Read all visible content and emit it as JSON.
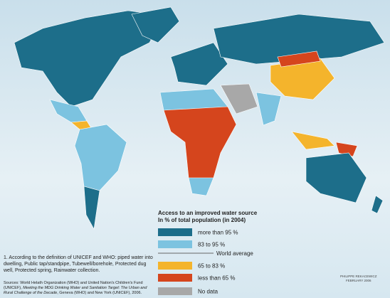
{
  "legend": {
    "title": "Access to an improved water source",
    "subtitle": "In % of total population (in 2004)",
    "items": [
      {
        "label": "more than 95 %",
        "color": "#1d6e8a"
      },
      {
        "label": "83 to 95 %",
        "color": "#7cc3e0"
      },
      {
        "label": "65 to 83 %",
        "color": "#f4b42c"
      },
      {
        "label": "less than 65 %",
        "color": "#d5451d"
      },
      {
        "label": "No data",
        "color": "#a8a8a8"
      }
    ],
    "world_average": "World average"
  },
  "footnote": "1. According to the definition of UNICEF and WHO: piped water into dwelling, Public tap/standpipe, Tubewell/borehole, Protected dug well, Protected spring, Rainwater collection.",
  "sources": {
    "lead": "Sources: World Helath Organization (WHO) and United Nation's Children's Fund (UNICEF), ",
    "title": "Meeting the MDG Drinking Water and Sanitation Target: The Urban and Rural Challenge of the Decade",
    "tail": ", Geneva (WHO) and New York (UNICEF), 2006."
  },
  "credit": {
    "author": "PHILIPPE REKACEWICZ",
    "date": "FEBRUARY 2006"
  }
}
